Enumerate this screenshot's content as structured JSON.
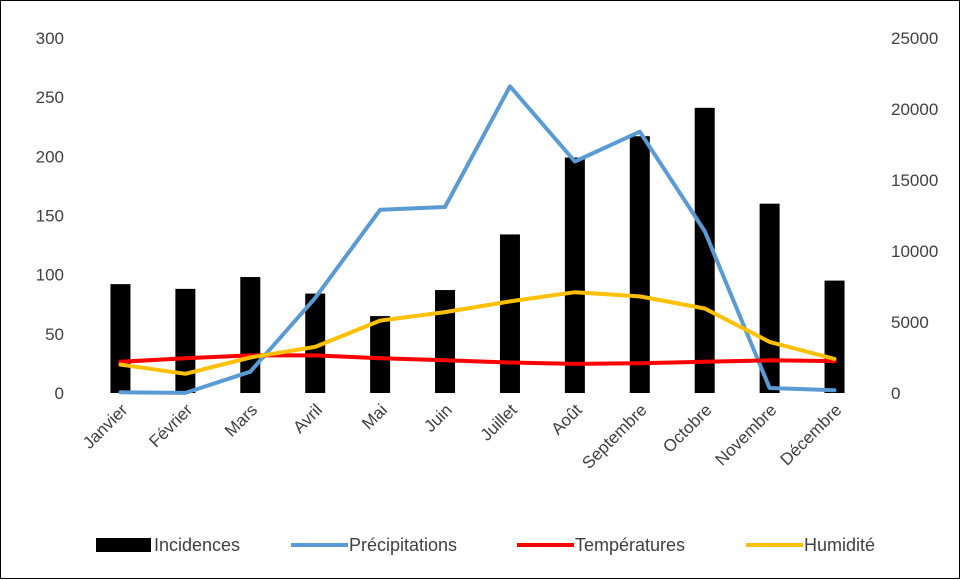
{
  "chart_data": {
    "type": "bar",
    "categories": [
      "Janvier",
      "Février",
      "Mars",
      "Avril",
      "Mai",
      "Juin",
      "Juillet",
      "Août",
      "Septembre",
      "Octobre",
      "Novembre",
      "Décembre"
    ],
    "left_axis": {
      "min": 0,
      "max": 300,
      "ticks": [
        "0",
        "50",
        "100",
        "150",
        "200",
        "250",
        "300"
      ]
    },
    "right_axis": {
      "min": 0,
      "max": 25000,
      "ticks": [
        "0",
        "5000",
        "10000",
        "15000",
        "20000",
        "25000"
      ]
    },
    "series": [
      {
        "name": "Incidences",
        "kind": "bar",
        "axis": "left",
        "color": "#000000",
        "values": [
          92,
          88,
          98,
          84,
          65,
          87,
          134,
          199,
          217,
          241,
          160,
          95
        ]
      },
      {
        "name": "Précipitations",
        "kind": "line",
        "axis": "right",
        "color": "#5B9BD5",
        "values": [
          50,
          10,
          1500,
          6700,
          12900,
          13100,
          21600,
          16300,
          18400,
          11400,
          350,
          200
        ]
      },
      {
        "name": "Températures",
        "kind": "line",
        "axis": "right",
        "color": "#FF0000",
        "values": [
          2200,
          2450,
          2650,
          2650,
          2450,
          2300,
          2150,
          2050,
          2100,
          2200,
          2300,
          2250
        ]
      },
      {
        "name": "Humidité",
        "kind": "line",
        "axis": "right",
        "color": "#FFC000",
        "values": [
          2000,
          1350,
          2500,
          3250,
          5100,
          5700,
          6450,
          7100,
          6800,
          5950,
          3600,
          2400
        ]
      }
    ],
    "grid": false,
    "legend": "bottom"
  }
}
